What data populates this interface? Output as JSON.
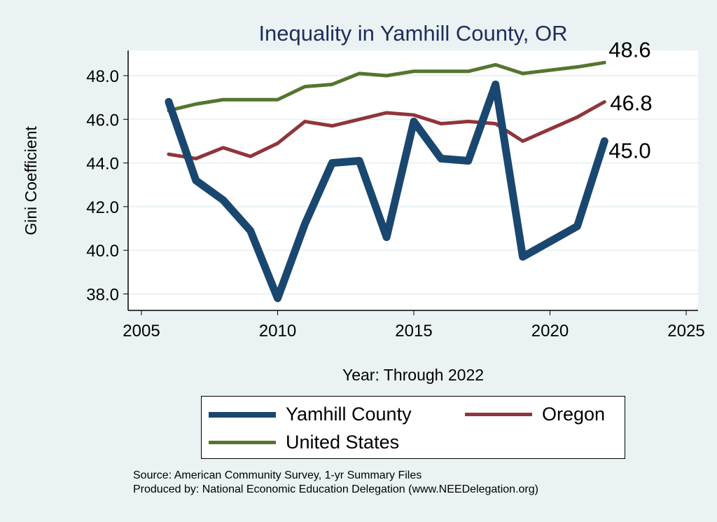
{
  "chart_data": {
    "type": "line",
    "title": "Inequality in Yamhill County, OR",
    "xlabel": "Year: Through 2022",
    "ylabel": "Gini Coefficient",
    "xlim": [
      2005,
      2025
    ],
    "ylim": [
      37.5,
      49.2
    ],
    "xticks": [
      "2005",
      "2010",
      "2015",
      "2020",
      "2025"
    ],
    "yticks": [
      "38.0",
      "40.0",
      "42.0",
      "44.0",
      "46.0",
      "48.0"
    ],
    "grid": true,
    "legend_position": "bottom",
    "x": [
      2006,
      2007,
      2008,
      2009,
      2010,
      2011,
      2012,
      2013,
      2014,
      2015,
      2016,
      2017,
      2018,
      2019,
      2021,
      2022
    ],
    "series": [
      {
        "name": "Yamhill County",
        "color": "#1a476f",
        "values": [
          46.8,
          43.2,
          42.3,
          40.9,
          37.8,
          41.2,
          44.0,
          44.1,
          40.6,
          45.9,
          44.2,
          44.1,
          47.6,
          39.7,
          41.1,
          45.0
        ],
        "end_label": "45.0"
      },
      {
        "name": "Oregon",
        "color": "#90353b",
        "values": [
          44.4,
          44.2,
          44.7,
          44.3,
          44.9,
          45.9,
          45.7,
          46.0,
          46.3,
          46.2,
          45.8,
          45.9,
          45.8,
          45.0,
          46.1,
          46.8
        ],
        "end_label": "46.8"
      },
      {
        "name": "United States",
        "color": "#55752f",
        "values": [
          46.4,
          46.7,
          46.9,
          46.9,
          46.9,
          47.5,
          47.6,
          48.1,
          48.0,
          48.2,
          48.2,
          48.2,
          48.5,
          48.1,
          48.4,
          48.6
        ],
        "end_label": "48.6"
      }
    ]
  },
  "notes": {
    "source": "Source: American Community Survey, 1-yr Summary Files",
    "produced": "Produced by: National Economic Education Delegation (www.NEEDelegation.org)"
  }
}
